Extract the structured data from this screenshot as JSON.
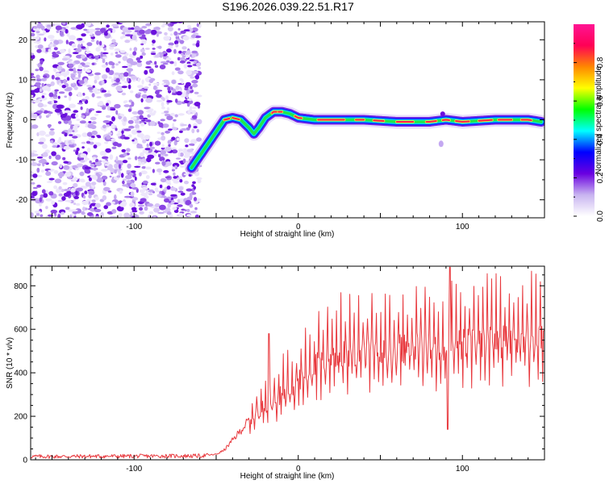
{
  "figure_title": "S196.2026.039.22.51.R17",
  "chart_data": [
    {
      "type": "heatmap",
      "name": "spectrogram",
      "xlabel": "Height of straight line (km)",
      "ylabel": "Frequency (Hz)",
      "xlim": [
        -163,
        150
      ],
      "ylim": [
        -24.5,
        24.5
      ],
      "xticks": [
        -100,
        0,
        100
      ],
      "yticks": [
        -20,
        -10,
        0,
        10,
        20
      ],
      "noise_region_x": [
        -163,
        -60
      ],
      "ridge": {
        "x": [
          -65,
          -60,
          -55,
          -50,
          -45,
          -40,
          -35,
          -30,
          -27,
          -24,
          -20,
          -15,
          -10,
          -5,
          0,
          10,
          20,
          40,
          60,
          80,
          90,
          100,
          120,
          140,
          148
        ],
        "y": [
          -12,
          -9,
          -6,
          -3,
          0,
          0.5,
          0,
          -2,
          -3.5,
          -2,
          0.5,
          2,
          2,
          1.5,
          0.5,
          0,
          0,
          0,
          -0.5,
          -0.5,
          0,
          -0.5,
          0,
          0,
          -0.5
        ]
      },
      "colorbar": {
        "label": "Normalized spectral amplitude",
        "range": [
          0,
          1
        ],
        "ticks": [
          0.0,
          0.2,
          0.4,
          0.6,
          0.8
        ],
        "tick_labels": [
          "0.0",
          "0.2",
          "0.4",
          "0.6",
          "0.8"
        ],
        "colors": [
          "#ffffff",
          "#c8b4f0",
          "#6a00e0",
          "#0000ff",
          "#00ffff",
          "#00ff00",
          "#ffff00",
          "#ff8800",
          "#ff0055",
          "#ff1493"
        ]
      }
    },
    {
      "type": "line",
      "name": "snr",
      "xlabel": "Height of straight line (km)",
      "ylabel": "SNR (10 * v/v)",
      "xlim": [
        -163,
        150
      ],
      "ylim": [
        0,
        890
      ],
      "xticks": [
        -100,
        0,
        100
      ],
      "yticks": [
        0,
        200,
        400,
        600,
        800
      ],
      "color": "#e8383d",
      "envelope": {
        "x": [
          -163,
          -60,
          -50,
          -45,
          -40,
          -30,
          -20,
          -10,
          0,
          10,
          20,
          30,
          40,
          60,
          80,
          100,
          120,
          150
        ],
        "y": [
          15,
          18,
          25,
          45,
          90,
          180,
          250,
          300,
          360,
          430,
          470,
          490,
          500,
          510,
          520,
          530,
          540,
          560
        ]
      }
    }
  ]
}
